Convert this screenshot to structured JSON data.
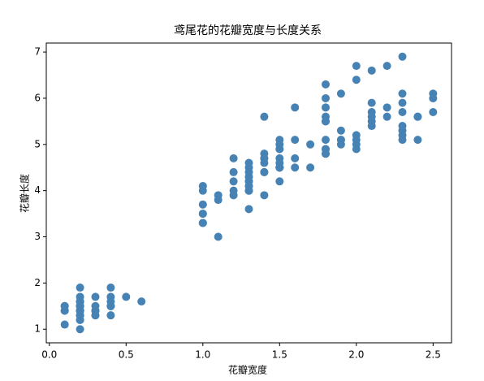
{
  "chart_data": {
    "type": "scatter",
    "title": "鸢尾花的花瓣宽度与长度关系",
    "xlabel": "花瓣宽度",
    "ylabel": "花瓣长度",
    "color": "#4682b4",
    "x": [
      0.2,
      0.2,
      0.2,
      0.2,
      0.2,
      0.4,
      0.3,
      0.2,
      0.2,
      0.1,
      0.2,
      0.2,
      0.1,
      0.1,
      0.2,
      0.4,
      0.4,
      0.3,
      0.3,
      0.3,
      0.2,
      0.4,
      0.2,
      0.5,
      0.2,
      0.2,
      0.4,
      0.2,
      0.2,
      0.2,
      0.2,
      0.4,
      0.1,
      0.2,
      0.2,
      0.2,
      0.2,
      0.1,
      0.2,
      0.2,
      0.3,
      0.3,
      0.2,
      0.6,
      0.4,
      0.3,
      0.2,
      0.2,
      0.2,
      0.2,
      1.4,
      1.5,
      1.5,
      1.3,
      1.5,
      1.3,
      1.6,
      1.0,
      1.3,
      1.4,
      1.0,
      1.5,
      1.0,
      1.4,
      1.3,
      1.4,
      1.5,
      1.0,
      1.5,
      1.1,
      1.8,
      1.3,
      1.5,
      1.2,
      1.3,
      1.4,
      1.4,
      1.7,
      1.5,
      1.0,
      1.1,
      1.0,
      1.2,
      1.6,
      1.5,
      1.6,
      1.5,
      1.3,
      1.3,
      1.3,
      1.2,
      1.4,
      1.2,
      1.0,
      1.3,
      1.2,
      1.3,
      1.3,
      1.1,
      1.3,
      2.5,
      1.9,
      2.1,
      1.8,
      2.2,
      2.1,
      1.7,
      1.8,
      1.8,
      2.5,
      2.0,
      1.9,
      2.1,
      2.0,
      2.4,
      2.3,
      1.8,
      2.2,
      2.3,
      1.5,
      2.3,
      2.0,
      2.0,
      1.8,
      2.1,
      1.8,
      1.8,
      1.8,
      2.1,
      1.6,
      1.9,
      2.0,
      2.2,
      1.5,
      1.4,
      2.3,
      2.4,
      1.8,
      1.8,
      2.1,
      2.4,
      2.3,
      1.9,
      2.3,
      2.5,
      2.3,
      1.9,
      2.0,
      2.3,
      1.8
    ],
    "values": [
      1.4,
      1.4,
      1.3,
      1.5,
      1.4,
      1.7,
      1.4,
      1.5,
      1.4,
      1.5,
      1.5,
      1.6,
      1.4,
      1.1,
      1.2,
      1.5,
      1.3,
      1.4,
      1.7,
      1.5,
      1.7,
      1.5,
      1.0,
      1.7,
      1.9,
      1.6,
      1.6,
      1.5,
      1.4,
      1.6,
      1.6,
      1.5,
      1.5,
      1.4,
      1.5,
      1.2,
      1.3,
      1.4,
      1.3,
      1.5,
      1.3,
      1.3,
      1.3,
      1.6,
      1.9,
      1.4,
      1.6,
      1.4,
      1.5,
      1.4,
      4.7,
      4.5,
      4.9,
      4.0,
      4.6,
      4.5,
      4.7,
      3.3,
      4.6,
      3.9,
      3.5,
      4.2,
      4.0,
      4.7,
      3.6,
      4.4,
      4.5,
      4.1,
      4.5,
      3.9,
      4.8,
      4.0,
      4.9,
      4.7,
      4.3,
      4.4,
      4.8,
      5.0,
      4.5,
      3.5,
      3.8,
      3.7,
      3.9,
      5.1,
      4.5,
      4.5,
      4.7,
      4.4,
      4.1,
      4.0,
      4.4,
      4.6,
      4.0,
      3.3,
      4.2,
      4.2,
      4.2,
      4.3,
      3.0,
      4.1,
      6.0,
      5.1,
      5.9,
      5.6,
      5.8,
      6.6,
      4.5,
      6.3,
      5.8,
      6.1,
      5.1,
      5.3,
      5.5,
      5.0,
      5.1,
      5.3,
      5.5,
      6.7,
      6.9,
      5.0,
      5.7,
      4.9,
      6.7,
      4.9,
      5.7,
      6.0,
      4.8,
      4.9,
      5.6,
      5.8,
      6.1,
      6.4,
      5.6,
      5.1,
      5.6,
      6.1,
      5.6,
      5.5,
      4.8,
      5.4,
      5.6,
      5.1,
      5.1,
      5.9,
      5.7,
      5.2,
      5.0,
      5.2,
      5.4,
      5.1
    ],
    "xlim": [
      -0.02,
      2.62
    ],
    "xticks": [
      {
        "value": 0,
        "label": "0.0"
      },
      0.5,
      {
        "value": 1,
        "label": "1.0"
      },
      1.5,
      {
        "value": 2,
        "label": "2.0"
      },
      2.5
    ],
    "ylim": [
      0.705,
      7.195
    ],
    "yticks": [
      1,
      2,
      3,
      4,
      5,
      6,
      7
    ]
  }
}
